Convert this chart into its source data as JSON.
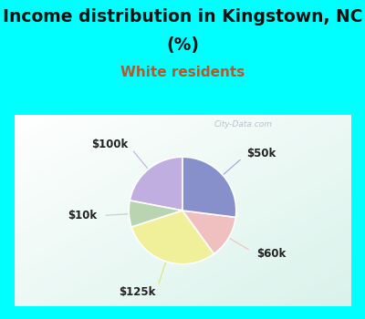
{
  "title_line1": "Income distribution in Kingstown, NC",
  "title_line2": "(%)",
  "subtitle": "White residents",
  "title_color": "#111111",
  "subtitle_color": "#b05a30",
  "title_fontsize": 13.5,
  "subtitle_fontsize": 11,
  "slices": [
    {
      "label": "$100k",
      "value": 22,
      "color": "#c0aee0"
    },
    {
      "label": "$10k",
      "value": 8,
      "color": "#b8d4b0"
    },
    {
      "label": "$125k",
      "value": 30,
      "color": "#f0f09a"
    },
    {
      "label": "$60k",
      "value": 13,
      "color": "#f0c0c0"
    },
    {
      "label": "$50k",
      "value": 27,
      "color": "#8890cc"
    }
  ],
  "start_angle": 90,
  "outer_bg": "#00ffff",
  "watermark": "City-Data.com",
  "border_width": 10
}
